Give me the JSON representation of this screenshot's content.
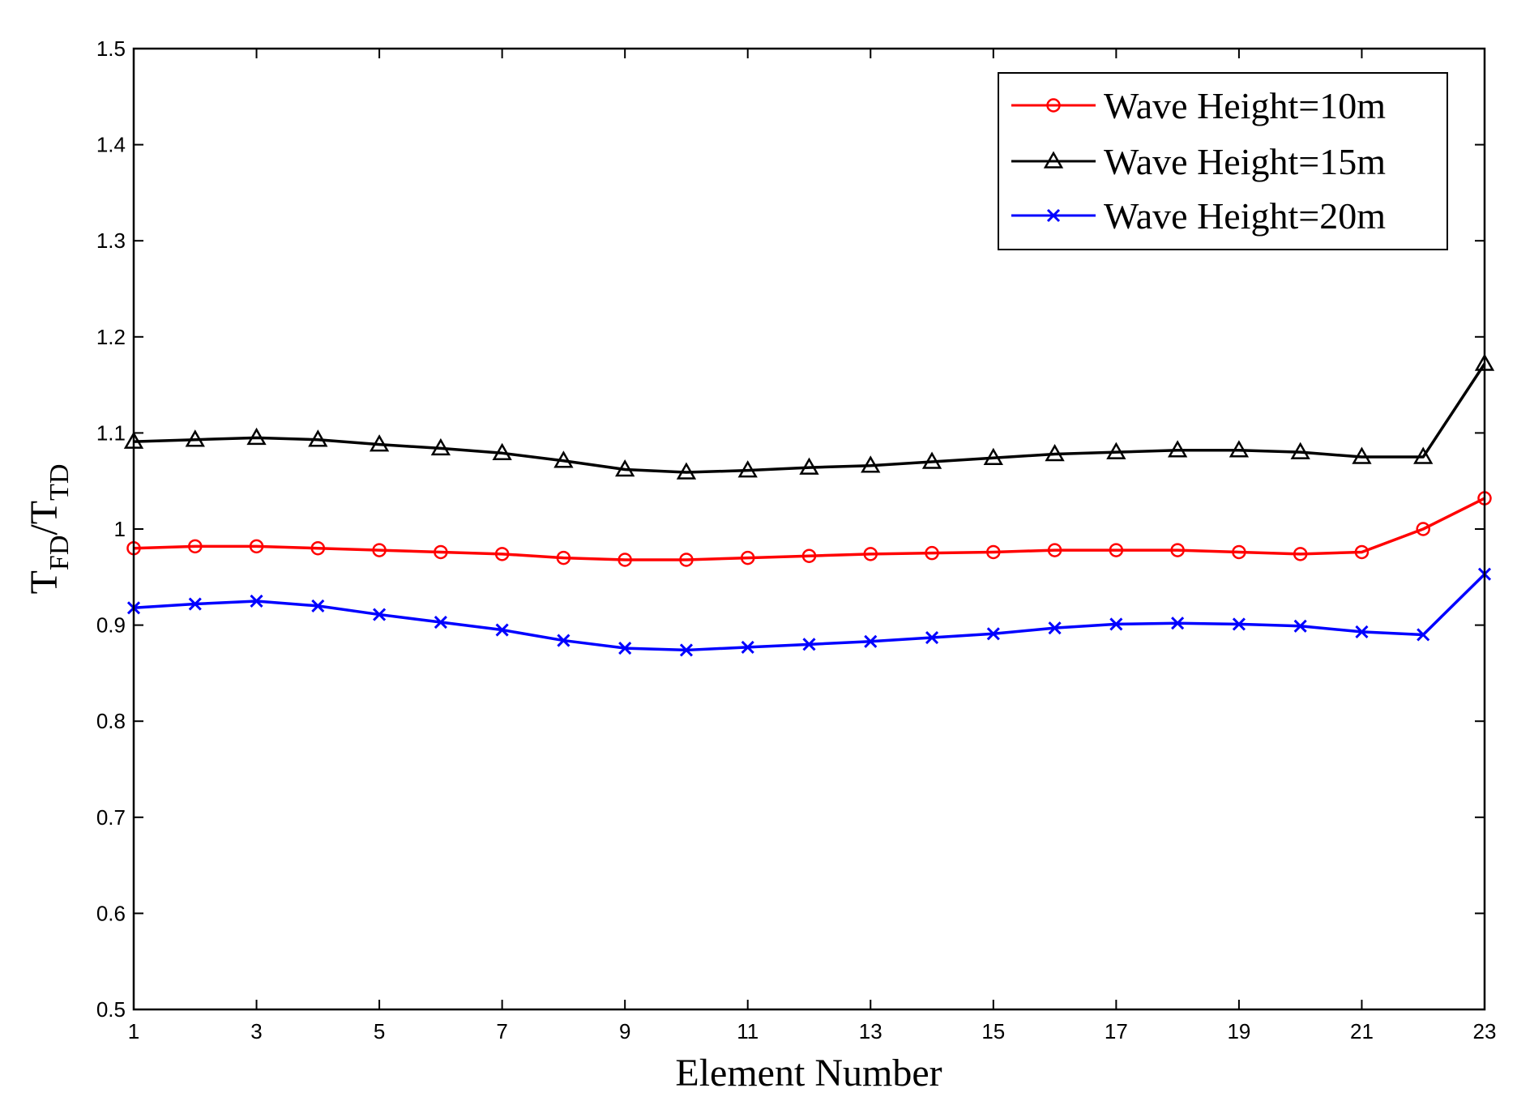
{
  "chart_data": {
    "type": "line",
    "title": "",
    "xlabel": "Element Number",
    "ylabel": {
      "main": "T",
      "sub1": "FD",
      "sep": "/T",
      "sub2": "TD"
    },
    "xlim": [
      1,
      23
    ],
    "ylim": [
      0.5,
      1.5
    ],
    "x_ticks": [
      1,
      3,
      5,
      7,
      9,
      11,
      13,
      15,
      17,
      19,
      21,
      23
    ],
    "y_ticks": [
      0.5,
      0.6,
      0.7,
      0.8,
      0.9,
      1,
      1.1,
      1.2,
      1.3,
      1.4,
      1.5
    ],
    "y_tick_labels": [
      "0.5",
      "0.6",
      "0.7",
      "0.8",
      "0.9",
      "1",
      "1.1",
      "1.2",
      "1.3",
      "1.4",
      "1.5"
    ],
    "grid": false,
    "legend_position": "top-right",
    "x": [
      1,
      2,
      3,
      4,
      5,
      6,
      7,
      8,
      9,
      10,
      11,
      12,
      13,
      14,
      15,
      16,
      17,
      18,
      19,
      20,
      21,
      22,
      23
    ],
    "series": [
      {
        "name": "Wave Height=10m",
        "color": "#ff0000",
        "marker": "circle",
        "values": [
          0.98,
          0.982,
          0.982,
          0.98,
          0.978,
          0.976,
          0.974,
          0.97,
          0.968,
          0.968,
          0.97,
          0.972,
          0.974,
          0.975,
          0.976,
          0.978,
          0.978,
          0.978,
          0.976,
          0.974,
          0.976,
          1.0,
          1.032
        ]
      },
      {
        "name": "Wave Height=15m",
        "color": "#000000",
        "marker": "triangle",
        "values": [
          1.091,
          1.093,
          1.095,
          1.093,
          1.088,
          1.084,
          1.079,
          1.071,
          1.062,
          1.059,
          1.061,
          1.064,
          1.066,
          1.07,
          1.074,
          1.078,
          1.08,
          1.082,
          1.082,
          1.08,
          1.075,
          1.075,
          1.172
        ]
      },
      {
        "name": "Wave Height=20m",
        "color": "#0000ff",
        "marker": "x",
        "values": [
          0.918,
          0.922,
          0.925,
          0.92,
          0.911,
          0.903,
          0.895,
          0.884,
          0.876,
          0.874,
          0.877,
          0.88,
          0.883,
          0.887,
          0.891,
          0.897,
          0.901,
          0.902,
          0.901,
          0.899,
          0.893,
          0.89,
          0.953
        ]
      }
    ]
  }
}
